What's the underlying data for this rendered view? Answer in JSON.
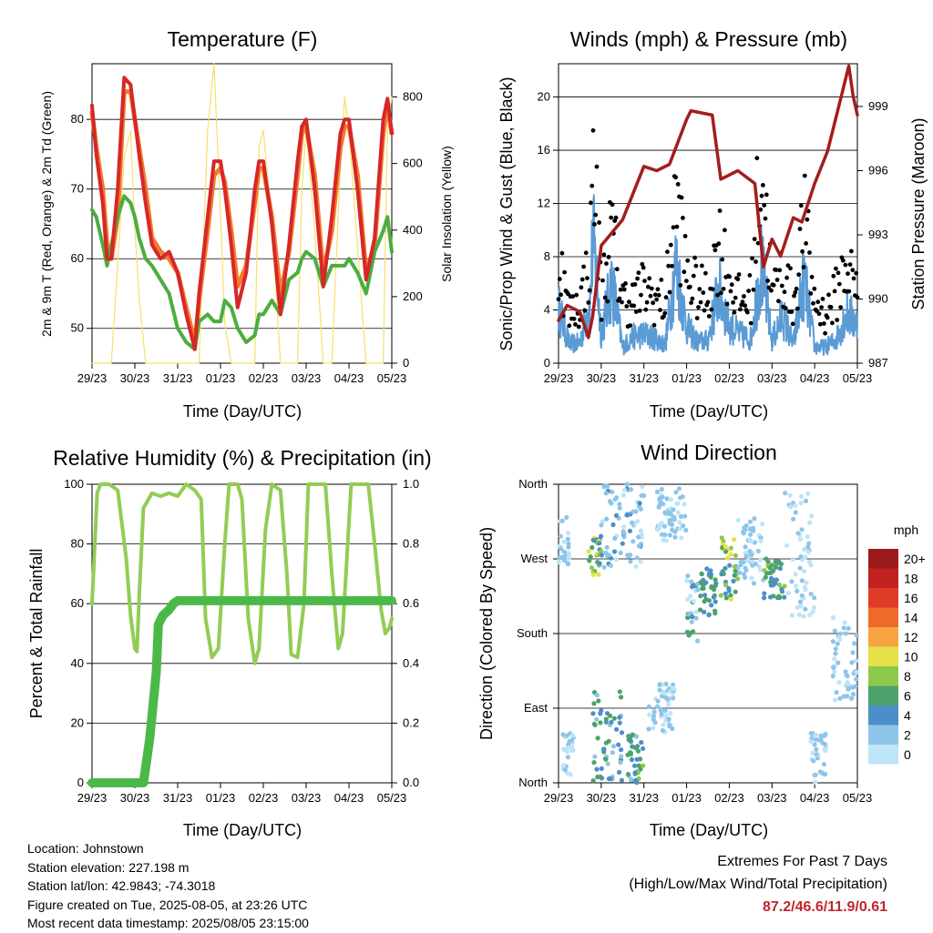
{
  "panels": {
    "temp": {
      "title": "Temperature (F)",
      "ylabel": "2m & 9m T (Red, Orange) & 2m Td (Green)",
      "y2label": "Solar Insolation (Yellow)",
      "xlabel": "Time (Day/UTC)"
    },
    "wind": {
      "title": "Winds (mph) & Pressure (mb)",
      "ylabel": "Sonic/Prop Wind & Gust (Blue, Black)",
      "y2label": "Station Pressure (Maroon)",
      "xlabel": "Time (Day/UTC)"
    },
    "rh": {
      "title": "Relative Humidity (%) & Precipitation (in)",
      "ylabel": "Percent & Total Rainfall",
      "xlabel": "Time (Day/UTC)"
    },
    "dir": {
      "title": "Wind Direction",
      "ylabel": "Direction (Colored By Speed)",
      "xlabel": "Time (Day/UTC)",
      "legend_title": "mph"
    }
  },
  "info": {
    "location": "Location: Johnstown",
    "elevation": "Station elevation: 227.198 m",
    "latlon": "Station lat/lon: 42.9843; -74.3018",
    "created": "Figure created on Tue, 2025-08-05, at 23:26 UTC",
    "recent": "Most recent data timestamp: 2025/08/05 23:15:00"
  },
  "extremes": {
    "line1": "Extremes For Past 7 Days",
    "line2": "(High/Low/Max Wind/Total Precipitation)",
    "values": "87.2/46.6/11.9/0.61"
  },
  "colors": {
    "temp_2m": "#d62728",
    "temp_9m": "#f47b2a",
    "dewpoint": "#4cad3f",
    "solar": "#f7e06a",
    "wind_sonic": "#5b9bd5",
    "wind_gust": "#000000",
    "pressure": "#a31d1d",
    "rh": "#92cc55",
    "precip": "#4cb848"
  },
  "chart_data": [
    {
      "type": "line",
      "title": "Temperature (F)",
      "xlabel": "Time (Day/UTC)",
      "ylabel": "2m & 9m T (Red, Orange) & 2m Td (Green)",
      "y2label": "Solar Insolation (Yellow)",
      "x_ticks": [
        "29/23",
        "30/23",
        "31/23",
        "01/23",
        "02/23",
        "03/23",
        "04/23",
        "05/23"
      ],
      "ylim": [
        45,
        88
      ],
      "y_ticks": [
        50,
        60,
        70,
        80
      ],
      "y2lim": [
        0,
        900
      ],
      "y2_ticks": [
        0,
        200,
        400,
        600,
        800
      ],
      "x_days": [
        0,
        0.1,
        0.25,
        0.35,
        0.45,
        0.6,
        0.75,
        0.9,
        1.0,
        1.1,
        1.25,
        1.4,
        1.6,
        1.8,
        2.0,
        2.2,
        2.4,
        2.5,
        2.7,
        2.85,
        3.0,
        3.1,
        3.25,
        3.4,
        3.6,
        3.8,
        3.9,
        4.0,
        4.2,
        4.4,
        4.6,
        4.8,
        4.9,
        5.0,
        5.2,
        5.4,
        5.6,
        5.8,
        5.9,
        6.0,
        6.2,
        6.4,
        6.6,
        6.8,
        6.9,
        7.0
      ],
      "series": [
        {
          "values": [
            82,
            75,
            68,
            60,
            60,
            70,
            86,
            85,
            80,
            75,
            68,
            62,
            60,
            61,
            58,
            52,
            47,
            55,
            66,
            74,
            74,
            70,
            62,
            53,
            58,
            70,
            74,
            74,
            65,
            52,
            62,
            74,
            79,
            80,
            70,
            56,
            66,
            78,
            80,
            80,
            70,
            57,
            63,
            80,
            83,
            78
          ]
        },
        {
          "values": [
            81,
            76,
            70,
            62,
            60,
            66,
            84,
            84,
            80,
            76,
            70,
            63,
            61,
            60,
            58,
            53,
            48,
            54,
            64,
            72,
            73,
            71,
            64,
            56,
            59,
            68,
            73,
            73,
            66,
            55,
            61,
            72,
            78,
            79,
            72,
            58,
            64,
            76,
            79,
            79,
            72,
            58,
            62,
            78,
            82,
            78
          ]
        },
        {
          "values": [
            67,
            66,
            62,
            59,
            62,
            66,
            69,
            68,
            66,
            63,
            60,
            59,
            57,
            55,
            50,
            48,
            47,
            51,
            52,
            51,
            51,
            54,
            53,
            50,
            48,
            49,
            52,
            52,
            54,
            52,
            57,
            58,
            60,
            61,
            60,
            56,
            59,
            59,
            59,
            60,
            58,
            55,
            61,
            64,
            66,
            61
          ]
        },
        {
          "y_axis": "right",
          "values": [
            0,
            0,
            0,
            0,
            0,
            300,
            620,
            700,
            400,
            200,
            0,
            0,
            0,
            0,
            0,
            0,
            0,
            0,
            700,
            900,
            450,
            120,
            0,
            0,
            0,
            0,
            650,
            700,
            420,
            0,
            0,
            0,
            520,
            700,
            400,
            0,
            0,
            600,
            800,
            700,
            350,
            0,
            0,
            0,
            700,
            800
          ]
        }
      ]
    },
    {
      "type": "scatter",
      "title": "Winds (mph) & Pressure (mb)",
      "xlabel": "Time (Day/UTC)",
      "ylabel": "Sonic/Prop Wind & Gust (Blue, Black)",
      "y2label": "Station Pressure (Maroon)",
      "x_ticks": [
        "29/23",
        "30/23",
        "31/23",
        "01/23",
        "02/23",
        "03/23",
        "04/23",
        "05/23"
      ],
      "ylim": [
        0,
        22.5
      ],
      "y_ticks": [
        0,
        4,
        8,
        12,
        16,
        20
      ],
      "y2lim": [
        987,
        1001
      ],
      "y2_ticks": [
        987,
        990,
        993,
        996,
        999
      ],
      "series": [
        {
          "x_days": [
            0.0,
            0.25,
            0.5,
            0.75,
            0.8,
            0.9,
            1.0,
            1.25,
            1.5,
            1.75,
            2.0,
            2.25,
            2.5,
            2.75,
            3.0,
            3.25,
            3.5,
            3.75,
            4.0,
            4.25,
            4.5,
            4.75,
            5.0,
            5.25,
            5.5,
            5.75,
            6.0,
            6.25,
            6.5,
            6.75,
            7.0
          ],
          "values": [
            10.2,
            4.8,
            5.8,
            10.3,
            20.3,
            14.2,
            6.6,
            12.7,
            6.2,
            5.9,
            7.2,
            6.2,
            5.8,
            15.9,
            8.6,
            6.9,
            6.4,
            11.8,
            8.3,
            5.9,
            6.2,
            20.1,
            6.4,
            8.8,
            5.7,
            13.7,
            5.8,
            4.7,
            6.6,
            9.7,
            6.6
          ]
        },
        {
          "x_days": [
            0.0,
            0.25,
            0.5,
            0.75,
            0.8,
            0.9,
            1.0,
            1.25,
            1.5,
            1.75,
            2.0,
            2.25,
            2.5,
            2.75,
            3.0,
            3.25,
            3.5,
            3.75,
            4.0,
            4.25,
            4.5,
            4.75,
            5.0,
            5.25,
            5.5,
            5.75,
            6.0,
            6.25,
            6.5,
            6.75,
            7.0
          ],
          "values": [
            5.2,
            1.8,
            1.9,
            6.1,
            11.9,
            7.8,
            2.8,
            7.6,
            1.5,
            2.5,
            2.7,
            2.4,
            1.7,
            9.3,
            3.4,
            2.0,
            2.1,
            7.0,
            3.5,
            2.7,
            2.3,
            9.2,
            2.1,
            4.5,
            1.7,
            7.9,
            1.5,
            1.5,
            2.2,
            4.8,
            3.6
          ]
        },
        {
          "y_axis": "right",
          "x_days": [
            0.0,
            0.2,
            0.5,
            0.7,
            0.8,
            1.0,
            1.5,
            1.8,
            2.0,
            2.3,
            2.6,
            3.0,
            3.1,
            3.6,
            3.8,
            4.2,
            4.6,
            4.8,
            5.0,
            5.2,
            5.5,
            5.7,
            6.0,
            6.3,
            6.6,
            6.8,
            6.9,
            7.0
          ],
          "values": [
            989.0,
            989.7,
            989.4,
            988.2,
            989.2,
            992.5,
            993.7,
            995.2,
            996.2,
            996.0,
            996.3,
            998.4,
            998.8,
            998.6,
            995.6,
            996.0,
            995.4,
            991.5,
            992.8,
            992.0,
            993.8,
            993.6,
            995.4,
            996.9,
            999.3,
            1000.9,
            999.5,
            998.6
          ]
        }
      ]
    },
    {
      "type": "line",
      "title": "Relative Humidity (%) & Precipitation (in)",
      "xlabel": "Time (Day/UTC)",
      "ylabel": "Percent & Total Rainfall",
      "x_ticks": [
        "29/23",
        "30/23",
        "31/23",
        "01/23",
        "02/23",
        "03/23",
        "04/23",
        "05/23"
      ],
      "ylim": [
        0,
        100
      ],
      "y_ticks": [
        0,
        20,
        40,
        60,
        80,
        100
      ],
      "y2lim": [
        0,
        1.0
      ],
      "y2_ticks": [
        0.0,
        0.2,
        0.4,
        0.6,
        0.8,
        1.0
      ],
      "series": [
        {
          "x_days": [
            0.0,
            0.05,
            0.12,
            0.2,
            0.4,
            0.6,
            0.8,
            0.9,
            1.0,
            1.05,
            1.1,
            1.2,
            1.4,
            1.6,
            1.8,
            2.0,
            2.2,
            2.4,
            2.55,
            2.65,
            2.8,
            2.95,
            3.1,
            3.2,
            3.4,
            3.5,
            3.65,
            3.8,
            3.9,
            4.05,
            4.2,
            4.4,
            4.55,
            4.65,
            4.8,
            4.95,
            5.05,
            5.2,
            5.45,
            5.6,
            5.75,
            5.85,
            6.05,
            6.2,
            6.45,
            6.6,
            6.75,
            6.85,
            6.95,
            7.0
          ],
          "values": [
            60,
            75,
            97,
            100,
            100,
            98,
            75,
            56,
            45,
            44,
            62,
            92,
            97,
            96,
            97,
            96,
            100,
            98,
            95,
            55,
            42,
            45,
            80,
            100,
            100,
            95,
            55,
            40,
            45,
            85,
            100,
            98,
            70,
            43,
            42,
            60,
            100,
            100,
            100,
            70,
            45,
            50,
            100,
            100,
            100,
            80,
            58,
            50,
            52,
            55
          ]
        },
        {
          "x_days": [
            0.0,
            1.2,
            1.25,
            1.35,
            1.5,
            1.55,
            1.65,
            1.8,
            1.9,
            2.0,
            2.3,
            3.0,
            4.0,
            5.0,
            6.0,
            7.0
          ],
          "values": [
            0.0,
            0.0,
            0.05,
            0.15,
            0.37,
            0.53,
            0.56,
            0.58,
            0.6,
            0.61,
            0.61,
            0.61,
            0.61,
            0.61,
            0.61,
            0.61
          ]
        }
      ]
    },
    {
      "type": "scatter",
      "title": "Wind Direction",
      "xlabel": "Time (Day/UTC)",
      "ylabel": "Direction (Colored By Speed)",
      "x_ticks": [
        "29/23",
        "30/23",
        "31/23",
        "01/23",
        "02/23",
        "03/23",
        "04/23",
        "05/23"
      ],
      "y_tick_labels": [
        "North",
        "East",
        "South",
        "West",
        "North"
      ],
      "ylim": [
        0,
        360
      ],
      "legend_title": "mph",
      "colorbar": [
        {
          "label": "0",
          "color": "#bde4f7"
        },
        {
          "label": "2",
          "color": "#8ec5ea"
        },
        {
          "label": "4",
          "color": "#4b8fc9"
        },
        {
          "label": "6",
          "color": "#4ca26a"
        },
        {
          "label": "8",
          "color": "#8ec94a"
        },
        {
          "label": "10",
          "color": "#e6e04a"
        },
        {
          "label": "12",
          "color": "#f6a542"
        },
        {
          "label": "14",
          "color": "#ef6a2b"
        },
        {
          "label": "16",
          "color": "#e03b28"
        },
        {
          "label": "18",
          "color": "#c1211f"
        },
        {
          "label": "20+",
          "color": "#9b1a1a"
        }
      ],
      "clusters": [
        {
          "x_range": [
            0.0,
            0.25
          ],
          "dir_range": [
            250,
            320
          ],
          "speed": [
            1,
            4
          ]
        },
        {
          "x_range": [
            0.1,
            0.35
          ],
          "dir_range": [
            10,
            60
          ],
          "speed": [
            0,
            3
          ]
        },
        {
          "x_range": [
            0.7,
            1.0
          ],
          "dir_range": [
            250,
            300
          ],
          "speed": [
            4,
            12
          ]
        },
        {
          "x_range": [
            0.8,
            1.5
          ],
          "dir_range": [
            0,
            110
          ],
          "speed": [
            2,
            8
          ]
        },
        {
          "x_range": [
            1.0,
            2.0
          ],
          "dir_range": [
            260,
            360
          ],
          "speed": [
            1,
            5
          ]
        },
        {
          "x_range": [
            1.6,
            2.0
          ],
          "dir_range": [
            0,
            60
          ],
          "speed": [
            3,
            9
          ]
        },
        {
          "x_range": [
            2.1,
            2.7
          ],
          "dir_range": [
            60,
            120
          ],
          "speed": [
            1,
            4
          ]
        },
        {
          "x_range": [
            2.3,
            3.0
          ],
          "dir_range": [
            290,
            355
          ],
          "speed": [
            1,
            4
          ]
        },
        {
          "x_range": [
            3.0,
            3.3
          ],
          "dir_range": [
            170,
            250
          ],
          "speed": [
            1,
            8
          ]
        },
        {
          "x_range": [
            3.3,
            3.7
          ],
          "dir_range": [
            200,
            260
          ],
          "speed": [
            4,
            8
          ]
        },
        {
          "x_range": [
            3.8,
            4.2
          ],
          "dir_range": [
            220,
            300
          ],
          "speed": [
            4,
            11
          ]
        },
        {
          "x_range": [
            4.2,
            4.8
          ],
          "dir_range": [
            240,
            320
          ],
          "speed": [
            1,
            4
          ]
        },
        {
          "x_range": [
            4.8,
            5.3
          ],
          "dir_range": [
            220,
            270
          ],
          "speed": [
            4,
            9
          ]
        },
        {
          "x_range": [
            5.3,
            6.0
          ],
          "dir_range": [
            200,
            350
          ],
          "speed": [
            0,
            3
          ]
        },
        {
          "x_range": [
            5.9,
            6.3
          ],
          "dir_range": [
            0,
            60
          ],
          "speed": [
            1,
            4
          ]
        },
        {
          "x_range": [
            6.4,
            7.0
          ],
          "dir_range": [
            100,
            200
          ],
          "speed": [
            1,
            4
          ]
        }
      ]
    }
  ]
}
